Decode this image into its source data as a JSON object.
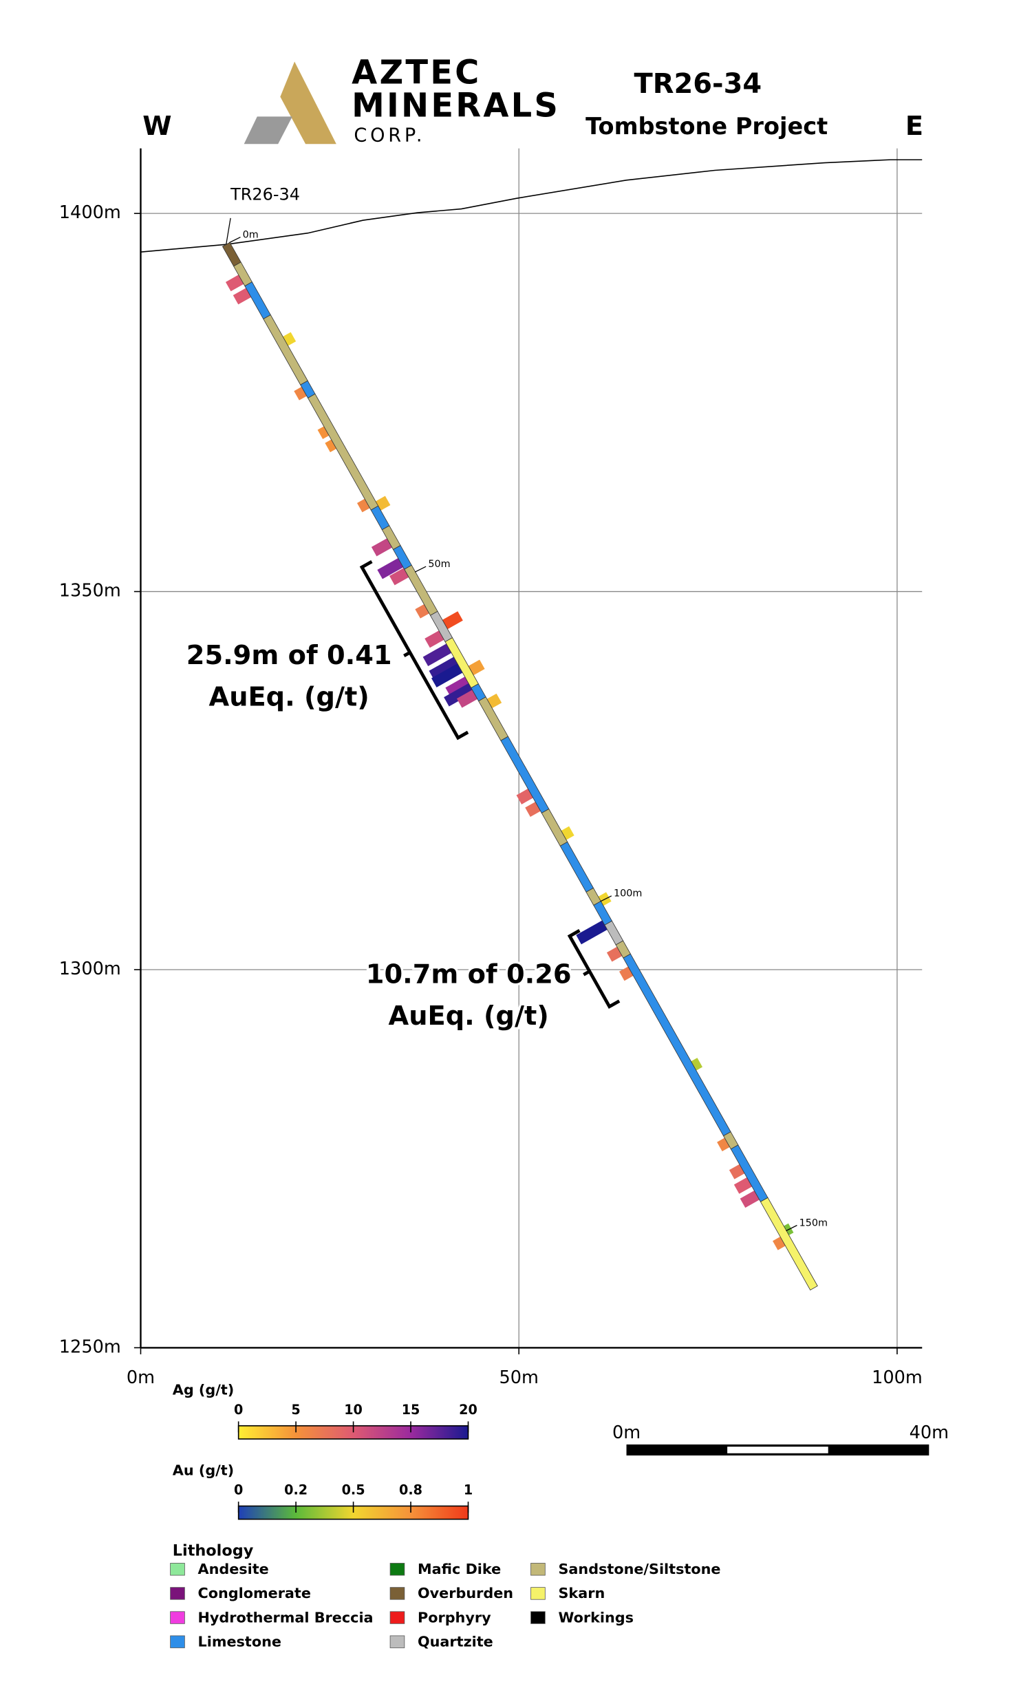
{
  "chart_data": {
    "type": "section",
    "logo": [
      "AZTEC",
      "MINERALS",
      "CORP."
    ],
    "title": "TR26-34",
    "subtitle": "Tombstone Project",
    "west": "W",
    "east": "E",
    "xlim": [
      0,
      103.3
    ],
    "ylim": [
      1250,
      1408.6
    ],
    "xticks": [
      {
        "value": 0,
        "label": "0m"
      },
      {
        "value": 50,
        "label": "50m"
      },
      {
        "value": 100,
        "label": "100m"
      }
    ],
    "yticks": [
      {
        "value": 1250,
        "label": "1250m"
      },
      {
        "value": 1300,
        "label": "1300m"
      },
      {
        "value": 1350,
        "label": "1350m"
      },
      {
        "value": 1400,
        "label": "1400m"
      }
    ],
    "grid": true,
    "topography": {
      "x": [
        0,
        11.3,
        22.1,
        29.4,
        36.6,
        42.4,
        49.7,
        64.2,
        75.9,
        90.4,
        99.1,
        103.3
      ],
      "y": [
        1394.9,
        1395.9,
        1397.4,
        1399.1,
        1400.1,
        1400.6,
        1402,
        1404.4,
        1405.7,
        1406.7,
        1407.1,
        1407.1
      ]
    },
    "hole": {
      "label": "TR26-34",
      "collar": {
        "x": 11.3,
        "y": 1395.9
      },
      "end": {
        "x": 89,
        "y": 1257.9
      },
      "length": 158.4,
      "depth_ticks": [
        {
          "value": 0,
          "label": "0m"
        },
        {
          "value": 50,
          "label": "50m"
        },
        {
          "value": 100,
          "label": "100m"
        },
        {
          "value": 150,
          "label": "150m"
        }
      ],
      "intervals": [
        {
          "from": 0,
          "to": 3,
          "lith": "Overburden"
        },
        {
          "from": 3,
          "to": 6,
          "lith": "Sandstone/Siltstone"
        },
        {
          "from": 6,
          "to": 11,
          "lith": "Limestone"
        },
        {
          "from": 11,
          "to": 21,
          "lith": "Sandstone/Siltstone"
        },
        {
          "from": 21,
          "to": 23,
          "lith": "Limestone"
        },
        {
          "from": 23,
          "to": 40,
          "lith": "Sandstone/Siltstone"
        },
        {
          "from": 40,
          "to": 43,
          "lith": "Limestone"
        },
        {
          "from": 43,
          "to": 46,
          "lith": "Sandstone/Siltstone"
        },
        {
          "from": 46,
          "to": 49,
          "lith": "Limestone"
        },
        {
          "from": 49,
          "to": 56,
          "lith": "Sandstone/Siltstone"
        },
        {
          "from": 56,
          "to": 60,
          "lith": "Quartzite"
        },
        {
          "from": 60,
          "to": 67,
          "lith": "Skarn"
        },
        {
          "from": 67,
          "to": 69,
          "lith": "Limestone"
        },
        {
          "from": 69,
          "to": 75,
          "lith": "Sandstone/Siltstone"
        },
        {
          "from": 75,
          "to": 86,
          "lith": "Limestone"
        },
        {
          "from": 86,
          "to": 91,
          "lith": "Sandstone/Siltstone"
        },
        {
          "from": 91,
          "to": 98,
          "lith": "Limestone"
        },
        {
          "from": 98,
          "to": 100,
          "lith": "Sandstone/Siltstone"
        },
        {
          "from": 100,
          "to": 103,
          "lith": "Limestone"
        },
        {
          "from": 103,
          "to": 106,
          "lith": "Quartzite"
        },
        {
          "from": 106,
          "to": 108,
          "lith": "Sandstone/Siltstone"
        },
        {
          "from": 108,
          "to": 135,
          "lith": "Limestone"
        },
        {
          "from": 135,
          "to": 137,
          "lith": "Sandstone/Siltstone"
        },
        {
          "from": 137,
          "to": 145,
          "lith": "Limestone"
        },
        {
          "from": 145,
          "to": 158.4,
          "lith": "Skarn"
        }
      ],
      "ag": [
        {
          "depth": 5,
          "value": 10
        },
        {
          "depth": 7,
          "value": 10
        },
        {
          "depth": 22,
          "value": 6
        },
        {
          "depth": 28,
          "value": 5
        },
        {
          "depth": 30,
          "value": 5
        },
        {
          "depth": 39,
          "value": 6
        },
        {
          "depth": 45,
          "value": 12
        },
        {
          "depth": 48,
          "value": 16
        },
        {
          "depth": 49.5,
          "value": 11
        },
        {
          "depth": 55,
          "value": 7
        },
        {
          "depth": 59,
          "value": 11
        },
        {
          "depth": 61,
          "value": 18
        },
        {
          "depth": 63,
          "value": 19
        },
        {
          "depth": 64,
          "value": 20
        },
        {
          "depth": 66,
          "value": 15
        },
        {
          "depth": 67,
          "value": 19
        },
        {
          "depth": 68,
          "value": 12
        },
        {
          "depth": 83,
          "value": 9
        },
        {
          "depth": 85,
          "value": 8
        },
        {
          "depth": 103,
          "value": 20
        },
        {
          "depth": 107,
          "value": 8
        },
        {
          "depth": 110,
          "value": 7
        },
        {
          "depth": 136,
          "value": 6
        },
        {
          "depth": 140,
          "value": 8
        },
        {
          "depth": 142,
          "value": 10
        },
        {
          "depth": 144,
          "value": 11
        },
        {
          "depth": 151,
          "value": 6
        }
      ],
      "au": [
        {
          "depth": 15,
          "value": 0.5
        },
        {
          "depth": 40,
          "value": 0.6
        },
        {
          "depth": 58,
          "value": 0.95
        },
        {
          "depth": 65,
          "value": 0.7
        },
        {
          "depth": 70,
          "value": 0.6
        },
        {
          "depth": 90,
          "value": 0.5
        },
        {
          "depth": 100,
          "value": 0.5
        },
        {
          "depth": 125,
          "value": 0.4
        },
        {
          "depth": 150,
          "value": 0.3
        }
      ]
    },
    "intercepts": [
      {
        "lines": [
          "25.9m of 0.41",
          "AuEq. (g/t)"
        ],
        "from": 46,
        "to": 71.9
      },
      {
        "lines": [
          "10.7m of 0.26",
          "AuEq. (g/t)"
        ],
        "from": 102,
        "to": 112.7
      }
    ],
    "colorbars": [
      {
        "title": "Ag (g/t)",
        "ticks": [
          0,
          5,
          10,
          15,
          20
        ],
        "colors": [
          "#ffee33",
          "#f5923a",
          "#de5a72",
          "#9b2a9e",
          "#1a1a90"
        ]
      },
      {
        "title": "Au (g/t)",
        "ticks": [
          0,
          0.2,
          0.5,
          0.8,
          1
        ],
        "colors": [
          "#1f3fb8",
          "#5cba3a",
          "#f1d630",
          "#f5923a",
          "#f03a1a"
        ]
      }
    ],
    "scale_bar": {
      "ticks": [
        {
          "value": 0,
          "label": "0m"
        },
        {
          "value": 40,
          "label": "40m"
        }
      ]
    },
    "lithology": {
      "title": "Lithology",
      "items": [
        {
          "name": "Andesite",
          "color": "#8ee89a"
        },
        {
          "name": "Conglomerate",
          "color": "#7a137a"
        },
        {
          "name": "Hydrothermal Breccia",
          "color": "#f03ce0"
        },
        {
          "name": "Limestone",
          "color": "#2e8ee8"
        },
        {
          "name": "Mafic Dike",
          "color": "#0d7a12"
        },
        {
          "name": "Overburden",
          "color": "#7a6036"
        },
        {
          "name": "Porphyry",
          "color": "#ee1c1c"
        },
        {
          "name": "Quartzite",
          "color": "#bcbcbc"
        },
        {
          "name": "Sandstone/Siltstone",
          "color": "#c2b878"
        },
        {
          "name": "Skarn",
          "color": "#f5f26a"
        },
        {
          "name": "Workings",
          "color": "#000000"
        }
      ]
    }
  }
}
